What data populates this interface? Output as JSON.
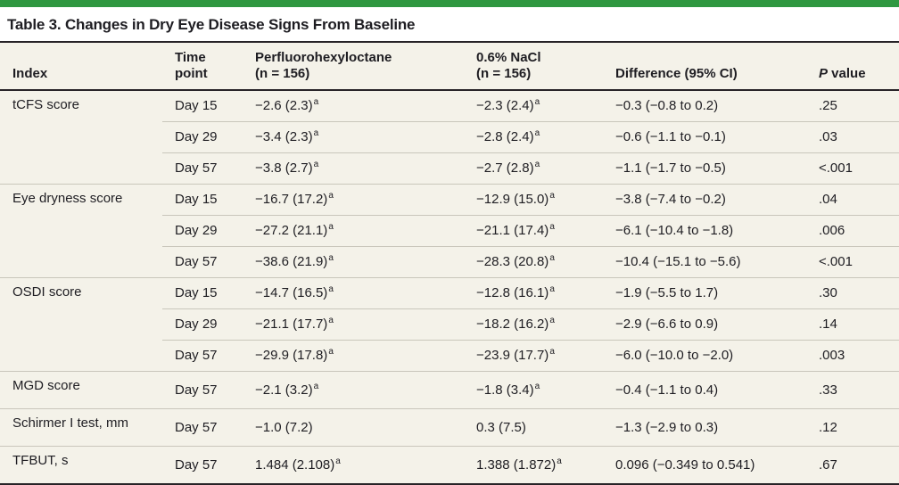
{
  "accent": {
    "brand_green": "#2f9740",
    "table_bg": "#f4f2e9",
    "rule_dark": "#272327",
    "rule_light": "#c9c6bb"
  },
  "table": {
    "title": "Table 3. Changes in Dry Eye Disease Signs From Baseline",
    "header": {
      "cells": [
        {
          "id": "index",
          "lines": [
            "Index"
          ]
        },
        {
          "id": "time-point",
          "lines": [
            "Time",
            "point"
          ]
        },
        {
          "id": "pfh",
          "lines": [
            "Perfluorohexyloctane",
            "(n = 156)"
          ]
        },
        {
          "id": "nacl",
          "lines": [
            "0.6% NaCl",
            "(n = 156)"
          ]
        },
        {
          "id": "difference",
          "lines": [
            "Difference (95% CI)"
          ]
        },
        {
          "id": "p-value",
          "lines": [
            "P value"
          ],
          "italic_lead": "P"
        }
      ]
    },
    "groups": [
      {
        "index": "tCFS score",
        "rows": [
          {
            "time": "Day 15",
            "pfh": {
              "text": "−2.6 (2.3)",
              "sup": "a"
            },
            "nacl": {
              "text": "−2.3 (2.4)",
              "sup": "a"
            },
            "diff": "−0.3 (−0.8 to 0.2)",
            "p": ".25"
          },
          {
            "time": "Day 29",
            "pfh": {
              "text": "−3.4 (2.3)",
              "sup": "a"
            },
            "nacl": {
              "text": "−2.8 (2.4)",
              "sup": "a"
            },
            "diff": "−0.6 (−1.1 to −0.1)",
            "p": ".03"
          },
          {
            "time": "Day 57",
            "pfh": {
              "text": "−3.8 (2.7)",
              "sup": "a"
            },
            "nacl": {
              "text": "−2.7 (2.8)",
              "sup": "a"
            },
            "diff": "−1.1 (−1.7 to −0.5)",
            "p": "<.001"
          }
        ]
      },
      {
        "index": "Eye dryness score",
        "rows": [
          {
            "time": "Day 15",
            "pfh": {
              "text": "−16.7 (17.2)",
              "sup": "a"
            },
            "nacl": {
              "text": "−12.9 (15.0)",
              "sup": "a"
            },
            "diff": "−3.8 (−7.4 to −0.2)",
            "p": ".04"
          },
          {
            "time": "Day 29",
            "pfh": {
              "text": "−27.2 (21.1)",
              "sup": "a"
            },
            "nacl": {
              "text": "−21.1 (17.4)",
              "sup": "a"
            },
            "diff": "−6.1 (−10.4 to −1.8)",
            "p": ".006"
          },
          {
            "time": "Day 57",
            "pfh": {
              "text": "−38.6 (21.9)",
              "sup": "a"
            },
            "nacl": {
              "text": "−28.3 (20.8)",
              "sup": "a"
            },
            "diff": "−10.4 (−15.1 to −5.6)",
            "p": "<.001"
          }
        ]
      },
      {
        "index": "OSDI score",
        "rows": [
          {
            "time": "Day 15",
            "pfh": {
              "text": "−14.7 (16.5)",
              "sup": "a"
            },
            "nacl": {
              "text": "−12.8 (16.1)",
              "sup": "a"
            },
            "diff": "−1.9 (−5.5 to 1.7)",
            "p": ".30"
          },
          {
            "time": "Day 29",
            "pfh": {
              "text": "−21.1 (17.7)",
              "sup": "a"
            },
            "nacl": {
              "text": "−18.2 (16.2)",
              "sup": "a"
            },
            "diff": "−2.9 (−6.6 to 0.9)",
            "p": ".14"
          },
          {
            "time": "Day 57",
            "pfh": {
              "text": "−29.9 (17.8)",
              "sup": "a"
            },
            "nacl": {
              "text": "−23.9 (17.7)",
              "sup": "a"
            },
            "diff": "−6.0 (−10.0 to −2.0)",
            "p": ".003"
          }
        ]
      },
      {
        "index": "MGD score",
        "rows": [
          {
            "time": "Day 57",
            "pfh": {
              "text": "−2.1 (3.2)",
              "sup": "a"
            },
            "nacl": {
              "text": "−1.8 (3.4)",
              "sup": "a"
            },
            "diff": "−0.4 (−1.1 to 0.4)",
            "p": ".33"
          }
        ]
      },
      {
        "index": "Schirmer I test, mm",
        "rows": [
          {
            "time": "Day 57",
            "pfh": {
              "text": "−1.0 (7.2)",
              "sup": ""
            },
            "nacl": {
              "text": "0.3 (7.5)",
              "sup": ""
            },
            "diff": "−1.3 (−2.9 to 0.3)",
            "p": ".12"
          }
        ]
      },
      {
        "index": "TFBUT, s",
        "rows": [
          {
            "time": "Day 57",
            "pfh": {
              "text": "1.484 (2.108)",
              "sup": "a"
            },
            "nacl": {
              "text": "1.388 (1.872)",
              "sup": "a"
            },
            "diff": "0.096 (−0.349 to 0.541)",
            "p": ".67"
          }
        ]
      }
    ]
  }
}
